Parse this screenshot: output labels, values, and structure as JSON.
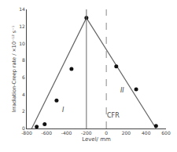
{
  "chart_data": {
    "type": "scatter",
    "xlabel": "Level/ mm",
    "ylabel": "Irradiation-Creep rate / ×10⁻¹² s⁻¹",
    "series": [
      {
        "type": "line",
        "color": "#666666",
        "line_style": "solid",
        "x": [
          -750,
          -200,
          500
        ],
        "values": [
          0.0,
          13.0,
          0.0
        ]
      },
      {
        "type": "scatter",
        "color": "#111111",
        "marker": "circle",
        "x": [
          -700,
          -620,
          -500,
          -350,
          -200,
          100,
          300,
          500
        ],
        "values": [
          0.2,
          0.5,
          3.3,
          7.0,
          13.0,
          7.3,
          4.6,
          0.3
        ]
      }
    ],
    "vlines": [
      {
        "x": -200,
        "color": "#666666",
        "line_style": "solid"
      },
      {
        "x": 0,
        "color": "#888888",
        "line_style": "dashed"
      }
    ],
    "annotations": [
      {
        "text": "I",
        "x": -430,
        "y": 2.2
      },
      {
        "text": "II",
        "x": 160,
        "y": 4.5
      },
      {
        "text": "CFR",
        "x": 70,
        "y": 1.5
      }
    ],
    "xlim": [
      -800,
      600
    ],
    "ylim": [
      0,
      14
    ],
    "xticks": [
      -800,
      -600,
      -400,
      -200,
      0,
      200,
      400,
      600
    ],
    "yticks": [
      0,
      2,
      4,
      6,
      8,
      10,
      12,
      14
    ],
    "grid": false
  }
}
